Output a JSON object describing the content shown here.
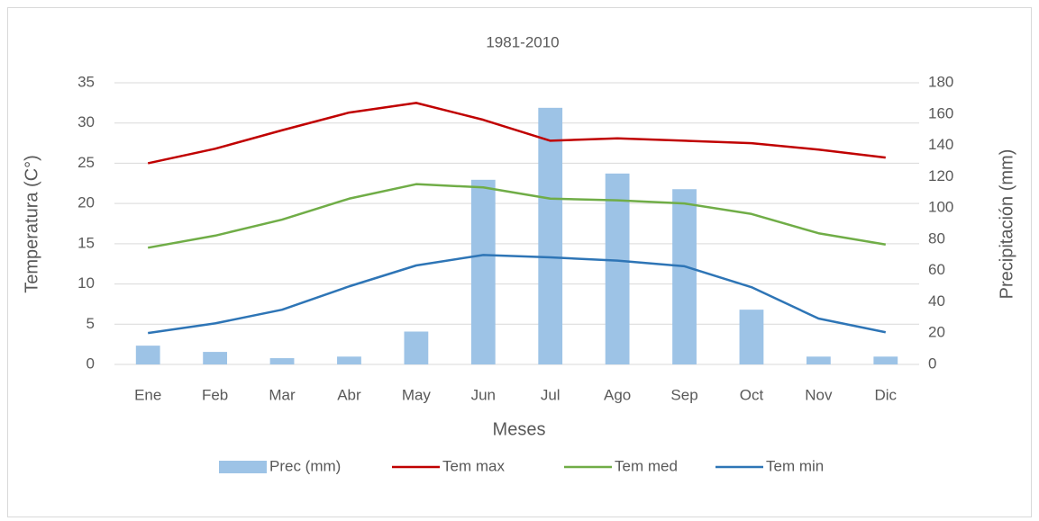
{
  "chart_data": {
    "type": "combo",
    "title": "1981-2010",
    "x_label": "Meses",
    "y_label": "Temperatura (C°)",
    "y2_label": "Precipitación (mm)",
    "categories": [
      "Ene",
      "Feb",
      "Mar",
      "Abr",
      "May",
      "Jun",
      "Jul",
      "Ago",
      "Sep",
      "Oct",
      "Nov",
      "Dic"
    ],
    "series": [
      {
        "name": "Prec (mm)",
        "type": "bar",
        "axis": "y2",
        "color": "#9dc3e6",
        "values": [
          12,
          8,
          4,
          5,
          21,
          118,
          164,
          122,
          112,
          35,
          5,
          5
        ]
      },
      {
        "name": "Tem max",
        "type": "line",
        "color": "#c00000",
        "values": [
          25.0,
          26.8,
          29.1,
          31.3,
          32.5,
          30.4,
          27.8,
          28.1,
          27.8,
          27.5,
          26.7,
          25.7
        ]
      },
      {
        "name": "Tem med",
        "type": "line",
        "color": "#70ad47",
        "values": [
          14.5,
          16.0,
          18.0,
          20.6,
          22.4,
          22.0,
          20.6,
          20.4,
          20.0,
          18.7,
          16.3,
          14.9
        ]
      },
      {
        "name": "Tem min",
        "type": "line",
        "color": "#2e75b6",
        "values": [
          3.9,
          5.1,
          6.8,
          9.7,
          12.3,
          13.6,
          13.3,
          12.9,
          12.2,
          9.6,
          5.7,
          4.0
        ]
      }
    ],
    "ylim": [
      0,
      35
    ],
    "yticks": [
      0,
      5,
      10,
      15,
      20,
      25,
      30,
      35
    ],
    "y2lim": [
      0,
      180
    ],
    "y2ticks": [
      0,
      20,
      40,
      60,
      80,
      100,
      120,
      140,
      160,
      180
    ],
    "grid": true,
    "legend": "bottom"
  }
}
